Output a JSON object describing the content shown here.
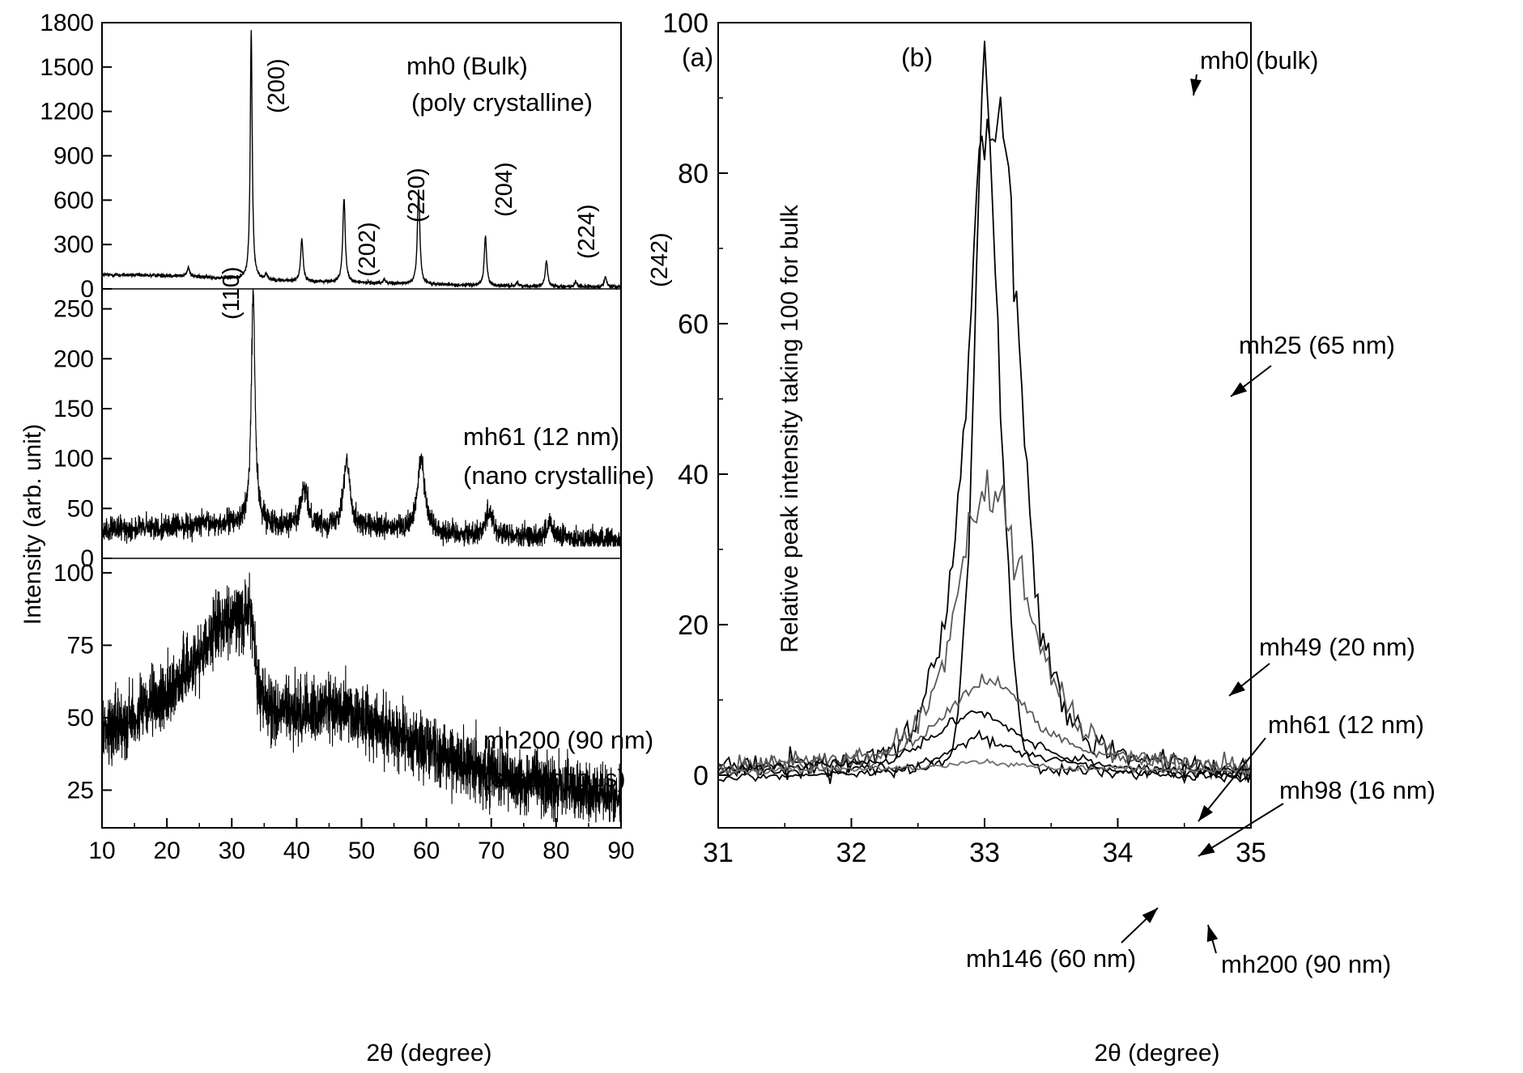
{
  "chart_data": [
    {
      "id": "a",
      "type": "line",
      "panel_label": "(a)",
      "xlabel": "2θ (degree)",
      "ylabel": "Intensity (arb. unit)",
      "xlim": [
        10,
        90
      ],
      "xticks": [
        "10",
        "20",
        "30",
        "40",
        "50",
        "60",
        "70",
        "80",
        "90"
      ],
      "subplots": [
        {
          "name": "mh0",
          "label_lines": [
            "mh0 (Bulk)",
            "(poly crystalline)"
          ],
          "ylim": [
            0,
            1800
          ],
          "yticks": [
            "0",
            "300",
            "600",
            "900",
            "1200",
            "1500",
            "1800"
          ],
          "baseline": {
            "x": [
              10,
              20,
              30,
              40,
              50,
              60,
              70,
              80,
              90
            ],
            "y": [
              95,
              90,
              70,
              50,
              40,
              30,
              20,
              15,
              12
            ]
          },
          "peaks": [
            {
              "label": "(110)",
              "x": 23.3,
              "y": 150
            },
            {
              "label": "(200)",
              "x": 33.0,
              "y": 1750
            },
            {
              "label": "(202)",
              "x": 40.8,
              "y": 340
            },
            {
              "label": "(220)",
              "x": 47.3,
              "y": 620
            },
            {
              "label": "(204)",
              "x": 58.8,
              "y": 680
            },
            {
              "label": "(224)",
              "x": 69.1,
              "y": 355
            },
            {
              "label": "(242)",
              "x": 78.5,
              "y": 190
            }
          ]
        },
        {
          "name": "mh61",
          "label_lines": [
            "mh61 (12 nm)",
            "(nano crystalline)"
          ],
          "ylim": [
            0,
            270
          ],
          "yticks": [
            "0",
            "50",
            "100",
            "150",
            "200",
            "250"
          ],
          "baseline": {
            "x": [
              10,
              30,
              50,
              70,
              90
            ],
            "y": [
              28,
              35,
              30,
              22,
              18
            ]
          },
          "peaks": [
            {
              "x": 33.3,
              "y": 265
            },
            {
              "x": 41.2,
              "y": 68
            },
            {
              "x": 47.7,
              "y": 95
            },
            {
              "x": 59.2,
              "y": 102
            },
            {
              "x": 69.7,
              "y": 48
            },
            {
              "x": 79.0,
              "y": 33
            }
          ]
        },
        {
          "name": "mh200",
          "label_lines": [
            "mh200 (90 nm)",
            "(amorphous)"
          ],
          "ylim": [
            12,
            105
          ],
          "yticks": [
            "25",
            "50",
            "75",
            "100"
          ],
          "curve": {
            "x": [
              10,
              15,
              20,
              25,
              28,
              30,
              32,
              33,
              34,
              36,
              40,
              45,
              50,
              55,
              60,
              65,
              70,
              75,
              80,
              85,
              90
            ],
            "y": [
              45,
              50,
              58,
              72,
              82,
              84,
              85,
              88,
              60,
              52,
              52,
              54,
              50,
              45,
              40,
              35,
              31,
              28,
              26,
              24,
              22
            ]
          }
        }
      ]
    },
    {
      "id": "b",
      "type": "line",
      "panel_label": "(b)",
      "xlabel": "2θ (degree)",
      "ylabel": "Relative peak intensity taking 100 for bulk",
      "xlim": [
        31,
        35
      ],
      "ylim": [
        -7,
        100
      ],
      "xticks": [
        "31",
        "32",
        "33",
        "34",
        "35"
      ],
      "yticks": [
        "0",
        "20",
        "40",
        "60",
        "80",
        "100"
      ],
      "series": [
        {
          "name": "mh0 (bulk)",
          "color": "#000000",
          "x": [
            31.0,
            32.5,
            32.68,
            32.75,
            32.8,
            32.88,
            32.95,
            33.0,
            33.05,
            33.12,
            33.2,
            33.28,
            33.35,
            33.5,
            35.0
          ],
          "y": [
            0.5,
            0.8,
            1.5,
            3,
            8,
            30,
            75,
            99,
            80,
            50,
            20,
            5,
            1.5,
            0.5,
            0.3
          ]
        },
        {
          "name": "mh25 (65 nm)",
          "color": "#000000",
          "x": [
            31.0,
            32.0,
            32.3,
            32.5,
            32.7,
            32.85,
            32.95,
            33.05,
            33.12,
            33.2,
            33.3,
            33.4,
            33.6,
            33.8,
            34.2,
            35.0
          ],
          "y": [
            1,
            1.5,
            3,
            7,
            20,
            45,
            80,
            86,
            86,
            76,
            45,
            20,
            8,
            4,
            2,
            0.5
          ]
        },
        {
          "name": "mh49 (20 nm)",
          "color": "#5a5a5a",
          "x": [
            31.0,
            32.2,
            32.5,
            32.7,
            32.85,
            32.95,
            33.05,
            33.15,
            33.3,
            33.45,
            33.7,
            34.0,
            34.5,
            35.0
          ],
          "y": [
            1,
            2,
            7,
            15,
            30,
            37,
            38,
            35,
            25,
            15,
            7,
            3,
            1.5,
            0.5
          ]
        },
        {
          "name": "mh61 (12 nm)",
          "color": "#5a5a5a",
          "x": [
            31.0,
            32.3,
            32.6,
            32.8,
            32.95,
            33.05,
            33.2,
            33.45,
            33.8,
            34.5,
            35.0
          ],
          "y": [
            1,
            3,
            6,
            10,
            12.5,
            13,
            11,
            6,
            3,
            1.5,
            1
          ]
        },
        {
          "name": "mh98 (16 nm)",
          "color": "#000000",
          "x": [
            31.0,
            32.3,
            32.6,
            32.8,
            32.95,
            33.05,
            33.2,
            33.5,
            34.0,
            35.0
          ],
          "y": [
            0.5,
            2,
            5,
            7,
            8.5,
            8,
            6,
            3,
            1,
            0.5
          ]
        },
        {
          "name": "mh146 (60 nm)",
          "color": "#000000",
          "x": [
            31.0,
            32.3,
            32.6,
            32.85,
            32.95,
            33.05,
            33.2,
            33.5,
            34.0,
            35.0
          ],
          "y": [
            -0.5,
            0.5,
            2,
            4,
            5,
            4.5,
            3.5,
            2,
            0.5,
            -0.5
          ]
        },
        {
          "name": "mh200 (90 nm)",
          "color": "#6e6e6e",
          "x": [
            31.0,
            32.5,
            33.0,
            33.5,
            35.0
          ],
          "y": [
            0.5,
            1,
            1.8,
            1,
            0.5
          ]
        }
      ],
      "annotations": [
        {
          "text": "mh0 (bulk)",
          "series": "mh0 (bulk)"
        },
        {
          "text": "mh25 (65 nm)",
          "series": "mh25 (65 nm)"
        },
        {
          "text": "mh49 (20 nm)",
          "series": "mh49 (20 nm)"
        },
        {
          "text": "mh61 (12 nm)",
          "series": "mh61 (12 nm)"
        },
        {
          "text": "mh98 (16 nm)",
          "series": "mh98 (16 nm)"
        },
        {
          "text": "mh146 (60 nm)",
          "series": "mh146 (60 nm)"
        },
        {
          "text": "mh200 (90 nm)",
          "series": "mh200 (90 nm)"
        }
      ]
    }
  ]
}
